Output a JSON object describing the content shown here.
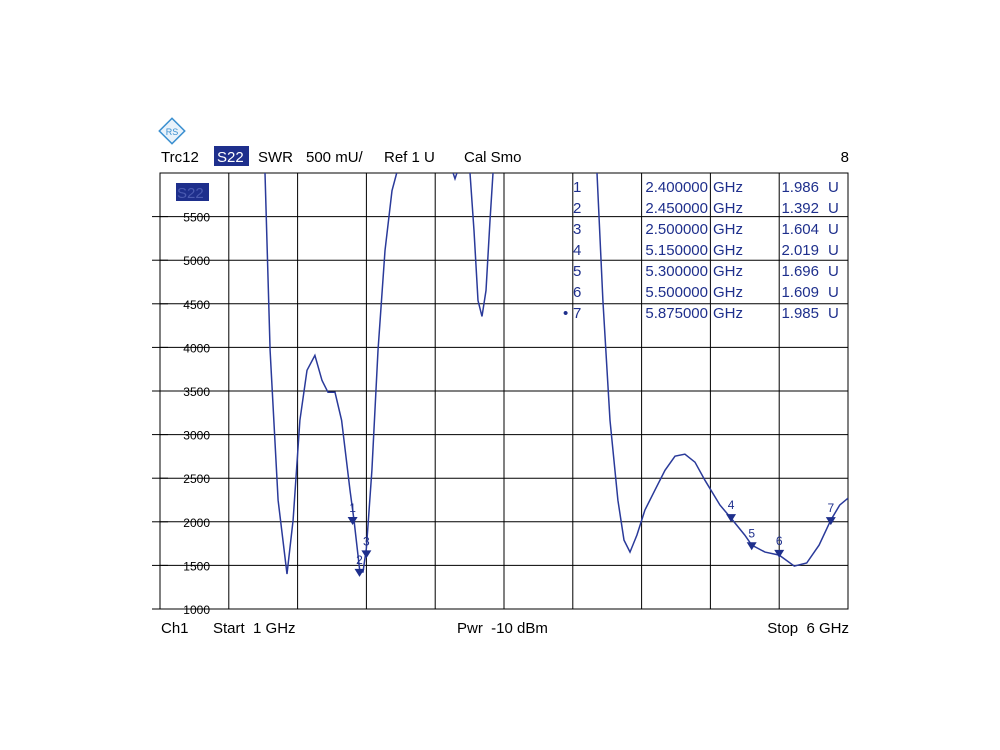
{
  "chart_data": {
    "type": "line",
    "header": {
      "trace": "Trc12",
      "param": "S22",
      "format": "SWR",
      "scale": "500 mU/",
      "ref": "Ref 1 U",
      "cal": "Cal Smo",
      "number": "8"
    },
    "trace_label": "S22",
    "footer": {
      "channel": "Ch1",
      "start": "Start  1 GHz",
      "power": "Pwr  -10 dBm",
      "stop": "Stop  6 GHz"
    },
    "xlim": [
      1,
      6
    ],
    "xticks": [
      1,
      1.5,
      2,
      2.5,
      3,
      3.5,
      4,
      4.5,
      5,
      5.5,
      6
    ],
    "ylim": [
      1000,
      6000
    ],
    "yticks": [
      1000,
      1500,
      2000,
      2500,
      3000,
      3500,
      4000,
      4500,
      5000,
      5500
    ],
    "grid": true,
    "x": [
      1.763,
      1.8,
      1.858,
      1.923,
      1.967,
      2.017,
      2.068,
      2.126,
      2.177,
      2.221,
      2.272,
      2.32,
      2.381,
      2.41,
      2.453,
      2.475,
      2.5,
      2.54,
      2.584,
      2.635,
      2.686,
      2.72,
      2.9,
      3.13,
      3.144,
      3.158,
      3.2,
      3.253,
      3.282,
      3.311,
      3.34,
      3.369,
      3.398,
      3.42,
      3.8,
      4.176,
      4.219,
      4.27,
      4.328,
      4.372,
      4.416,
      4.466,
      4.524,
      4.597,
      4.67,
      4.743,
      4.815,
      4.888,
      4.96,
      5.07,
      5.15,
      5.25,
      5.3,
      5.397,
      5.5,
      5.61,
      5.7,
      5.79,
      5.875,
      5.94,
      6.0
    ],
    "series": [
      {
        "name": "Trc12",
        "color": "#2a3a9a",
        "values": [
          6000,
          3966,
          2248,
          1401,
          2019,
          3164,
          3737,
          3908,
          3622,
          3485,
          3485,
          3164,
          2362,
          2019,
          1424,
          1424,
          1698,
          2591,
          3966,
          5110,
          5797,
          6000,
          null,
          6000,
          5935,
          6000,
          null,
          6000,
          5340,
          4538,
          4355,
          4653,
          5454,
          6000,
          null,
          6000,
          4538,
          3164,
          2248,
          1790,
          1653,
          1847,
          2134,
          2362,
          2591,
          2752,
          2775,
          2683,
          2477,
          2191,
          2042,
          1847,
          1733,
          1653,
          1618,
          1492,
          1527,
          1733,
          2019,
          2191,
          2271
        ]
      }
    ],
    "markers": [
      {
        "label": "1",
        "frequency": 2.4,
        "frequency_label": "2.400000",
        "frequency_unit": "GHz",
        "value": 1986,
        "value_label": "1.986",
        "value_unit": "U"
      },
      {
        "label": "2",
        "frequency": 2.45,
        "frequency_label": "2.450000",
        "frequency_unit": "GHz",
        "value": 1392,
        "value_label": "1.392",
        "value_unit": "U"
      },
      {
        "label": "3",
        "frequency": 2.5,
        "frequency_label": "2.500000",
        "frequency_unit": "GHz",
        "value": 1604,
        "value_label": "1.604",
        "value_unit": "U"
      },
      {
        "label": "4",
        "frequency": 5.15,
        "frequency_label": "5.150000",
        "frequency_unit": "GHz",
        "value": 2019,
        "value_label": "2.019",
        "value_unit": "U"
      },
      {
        "label": "5",
        "frequency": 5.3,
        "frequency_label": "5.300000",
        "frequency_unit": "GHz",
        "value": 1696,
        "value_label": "1.696",
        "value_unit": "U"
      },
      {
        "label": "6",
        "frequency": 5.5,
        "frequency_label": "5.500000",
        "frequency_unit": "GHz",
        "value": 1609,
        "value_label": "1.609",
        "value_unit": "U"
      },
      {
        "label": "7",
        "frequency": 5.875,
        "frequency_label": "5.875000",
        "frequency_unit": "GHz",
        "value": 1985,
        "value_label": "1.985",
        "value_unit": "U"
      }
    ]
  }
}
